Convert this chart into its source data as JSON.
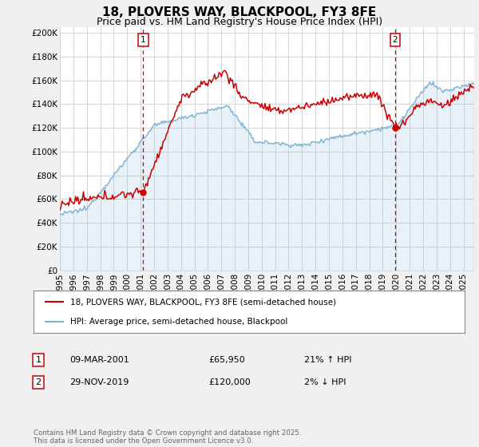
{
  "title": "18, PLOVERS WAY, BLACKPOOL, FY3 8FE",
  "subtitle": "Price paid vs. HM Land Registry's House Price Index (HPI)",
  "ylabel_ticks": [
    "£0",
    "£20K",
    "£40K",
    "£60K",
    "£80K",
    "£100K",
    "£120K",
    "£140K",
    "£160K",
    "£180K",
    "£200K"
  ],
  "ytick_values": [
    0,
    20000,
    40000,
    60000,
    80000,
    100000,
    120000,
    140000,
    160000,
    180000,
    200000
  ],
  "ylim": [
    0,
    205000
  ],
  "xlim_start": 1995.0,
  "xlim_end": 2025.8,
  "xticks": [
    1995,
    1996,
    1997,
    1998,
    1999,
    2000,
    2001,
    2002,
    2003,
    2004,
    2005,
    2006,
    2007,
    2008,
    2009,
    2010,
    2011,
    2012,
    2013,
    2014,
    2015,
    2016,
    2017,
    2018,
    2019,
    2020,
    2021,
    2022,
    2023,
    2024,
    2025
  ],
  "sale1_x": 2001.19,
  "sale1_y": 65950,
  "sale1_label": "1",
  "sale1_pct": "21% ↑ HPI",
  "sale1_date": "09-MAR-2001",
  "sale1_price": "£65,950",
  "sale2_x": 2019.91,
  "sale2_y": 120000,
  "sale2_label": "2",
  "sale2_pct": "2% ↓ HPI",
  "sale2_date": "29-NOV-2019",
  "sale2_price": "£120,000",
  "legend_line1": "18, PLOVERS WAY, BLACKPOOL, FY3 8FE (semi-detached house)",
  "legend_line2": "HPI: Average price, semi-detached house, Blackpool",
  "footer": "Contains HM Land Registry data © Crown copyright and database right 2025.\nThis data is licensed under the Open Government Licence v3.0.",
  "line_color_red": "#cc0000",
  "line_color_blue": "#7fb3d3",
  "background_color": "#f0f0f0",
  "plot_bg": "#ffffff",
  "vline_color": "#cc0000",
  "grid_color": "#d0d0d0",
  "title_fontsize": 11,
  "subtitle_fontsize": 9,
  "tick_fontsize": 7.5
}
